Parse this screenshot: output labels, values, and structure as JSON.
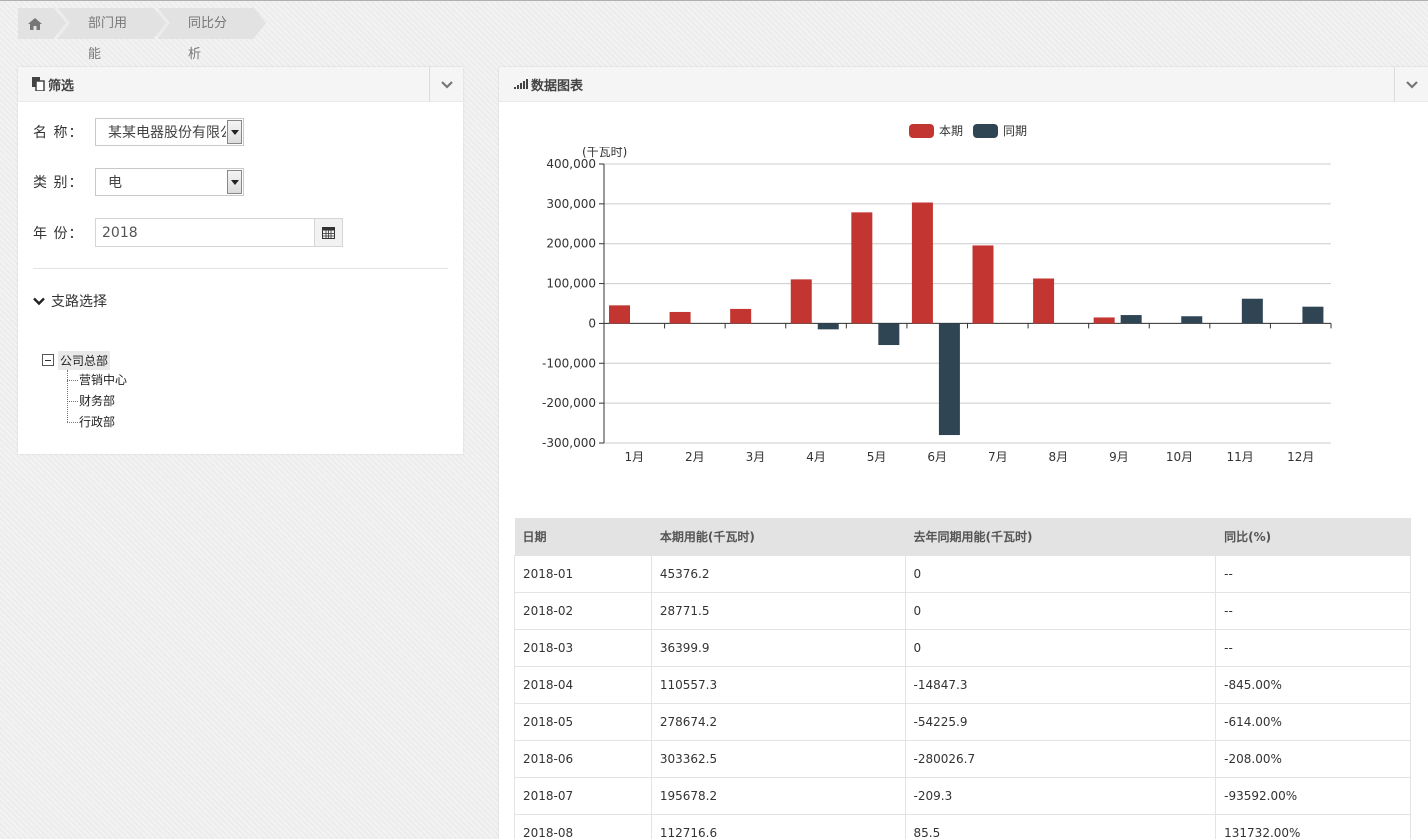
{
  "breadcrumb": {
    "home_icon": "home-icon",
    "items": [
      "部门用能",
      "同比分析"
    ]
  },
  "filter_panel": {
    "title": "筛选",
    "name_label": "名 称：",
    "name_value": "某某电器股份有限公司",
    "category_label": "类 别：",
    "category_value": "电",
    "year_label": "年 份：",
    "year_value": "2018",
    "branch_title": "支路选择",
    "tree": {
      "root": "公司总部",
      "children": [
        "营销中心",
        "财务部",
        "行政部"
      ]
    }
  },
  "chart_panel": {
    "title": "数据图表"
  },
  "chart_data": {
    "type": "bar",
    "unit_label": "(千瓦时)",
    "categories": [
      "1月",
      "2月",
      "3月",
      "4月",
      "5月",
      "6月",
      "7月",
      "8月",
      "9月",
      "10月",
      "11月",
      "12月"
    ],
    "series": [
      {
        "name": "本期",
        "color": "#c23531",
        "values": [
          45376.2,
          28771.5,
          36399.9,
          110557.3,
          278674.2,
          303362.5,
          195678.2,
          112716.6,
          15000,
          0,
          0,
          0
        ]
      },
      {
        "name": "同期",
        "color": "#2f4554",
        "values": [
          0,
          0,
          0,
          -14847.3,
          -54225.9,
          -280026.7,
          -209.3,
          85.5,
          21000,
          18000,
          62000,
          42000
        ]
      }
    ],
    "ylim": [
      -300000,
      400000
    ],
    "yticks": [
      "400,000",
      "300,000",
      "200,000",
      "100,000",
      "0",
      "-100,000",
      "-200,000",
      "-300,000"
    ],
    "ytick_values": [
      400000,
      300000,
      200000,
      100000,
      0,
      -100000,
      -200000,
      -300000
    ],
    "legend_position": "top-center",
    "grid": true
  },
  "table": {
    "headers": [
      "日期",
      "本期用能(千瓦时)",
      "去年同期用能(千瓦时)",
      "同比(%)"
    ],
    "rows": [
      [
        "2018-01",
        "45376.2",
        "0",
        "--"
      ],
      [
        "2018-02",
        "28771.5",
        "0",
        "--"
      ],
      [
        "2018-03",
        "36399.9",
        "0",
        "--"
      ],
      [
        "2018-04",
        "110557.3",
        "-14847.3",
        "-845.00%"
      ],
      [
        "2018-05",
        "278674.2",
        "-54225.9",
        "-614.00%"
      ],
      [
        "2018-06",
        "303362.5",
        "-280026.7",
        "-208.00%"
      ],
      [
        "2018-07",
        "195678.2",
        "-209.3",
        "-93592.00%"
      ],
      [
        "2018-08",
        "112716.6",
        "85.5",
        "131732.00%"
      ]
    ]
  }
}
